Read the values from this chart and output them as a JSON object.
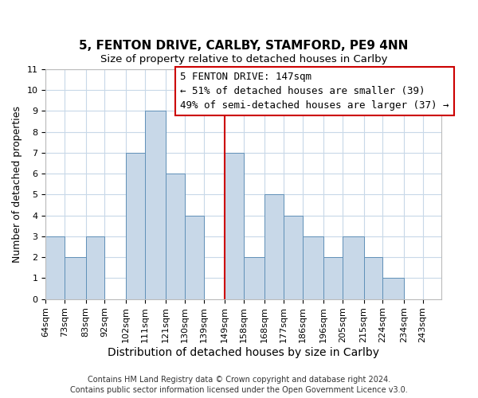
{
  "title": "5, FENTON DRIVE, CARLBY, STAMFORD, PE9 4NN",
  "subtitle": "Size of property relative to detached houses in Carlby",
  "xlabel": "Distribution of detached houses by size in Carlby",
  "ylabel": "Number of detached properties",
  "bar_edges": [
    64,
    73,
    83,
    92,
    102,
    111,
    121,
    130,
    139,
    149,
    158,
    168,
    177,
    186,
    196,
    205,
    215,
    224,
    234,
    243,
    252
  ],
  "bar_heights": [
    3,
    2,
    3,
    0,
    7,
    9,
    6,
    4,
    0,
    7,
    2,
    5,
    4,
    3,
    2,
    3,
    2,
    1,
    0,
    0
  ],
  "bar_color": "#c8d8e8",
  "bar_edgecolor": "#6090b8",
  "redline_x": 149,
  "ylim": [
    0,
    11
  ],
  "yticks": [
    0,
    1,
    2,
    3,
    4,
    5,
    6,
    7,
    8,
    9,
    10,
    11
  ],
  "annotation_title": "5 FENTON DRIVE: 147sqm",
  "annotation_line1": "← 51% of detached houses are smaller (39)",
  "annotation_line2": "49% of semi-detached houses are larger (37) →",
  "annotation_box_edgecolor": "#cc0000",
  "footer_line1": "Contains HM Land Registry data © Crown copyright and database right 2024.",
  "footer_line2": "Contains public sector information licensed under the Open Government Licence v3.0.",
  "title_fontsize": 11,
  "subtitle_fontsize": 9.5,
  "xlabel_fontsize": 10,
  "ylabel_fontsize": 9,
  "tick_fontsize": 8,
  "annotation_fontsize": 9,
  "footer_fontsize": 7,
  "background_color": "#ffffff",
  "grid_color": "#c8d8e8"
}
